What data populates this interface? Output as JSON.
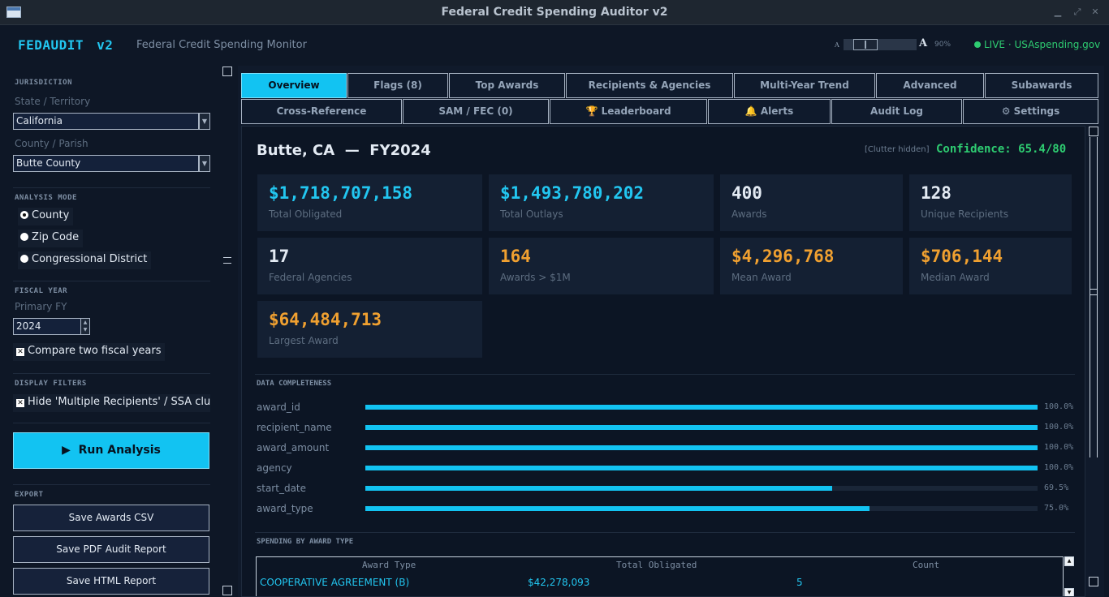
{
  "window": {
    "title": "Federal Credit Spending Auditor  v2"
  },
  "header": {
    "logo": "FEDAUDIT",
    "version": "v2",
    "subtitle": "Federal Credit Spending Monitor",
    "zoom_small": "A",
    "zoom_big": "A",
    "zoom_pct": "90%",
    "live": "LIVE · USAspending.gov"
  },
  "sidebar": {
    "jurisdiction_label": "JURISDICTION",
    "state_label": "State / Territory",
    "state_value": "California",
    "county_label": "County / Parish",
    "county_value": "Butte County",
    "analysis_mode_label": "ANALYSIS MODE",
    "modes": [
      {
        "label": "County",
        "selected": true
      },
      {
        "label": "Zip Code",
        "selected": false
      },
      {
        "label": "Congressional District",
        "selected": false
      }
    ],
    "fiscal_year_label": "FISCAL YEAR",
    "primary_fy_label": "Primary FY",
    "primary_fy_value": "2024",
    "compare_label": "Compare two fiscal years",
    "display_filters_label": "DISPLAY FILTERS",
    "hide_clutter_label": "Hide 'Multiple Recipients' / SSA clutter",
    "run_label": "Run Analysis",
    "export_label": "EXPORT",
    "export_buttons": [
      "Save Awards CSV",
      "Save PDF Audit Report",
      "Save HTML Report"
    ]
  },
  "tabs_row1": [
    "Overview",
    "Flags (8)",
    "Top Awards",
    "Recipients & Agencies",
    "Multi-Year Trend",
    "Advanced",
    "Subawards"
  ],
  "tabs_row2": [
    "Cross-Reference",
    "SAM / FEC (0)",
    "Leaderboard",
    "Alerts",
    "Audit Log",
    "Settings"
  ],
  "tabs_row2_icons": [
    "",
    "",
    "🏆",
    "🔔",
    "",
    "⚙"
  ],
  "overview": {
    "location": "Butte, CA",
    "separator": "—",
    "fiscal_year": "FY2024",
    "clutter_note": "[Clutter hidden]",
    "confidence": "Confidence: 65.4/80",
    "cards": [
      {
        "value": "$1,718,707,158",
        "label": "Total Obligated",
        "color": "#22c6f0"
      },
      {
        "value": "$1,493,780,202",
        "label": "Total Outlays",
        "color": "#22c6f0"
      },
      {
        "value": "400",
        "label": "Awards",
        "color": "#e3eaf3"
      },
      {
        "value": "128",
        "label": "Unique Recipients",
        "color": "#e3eaf3"
      },
      {
        "value": "17",
        "label": "Federal Agencies",
        "color": "#e3eaf3"
      },
      {
        "value": "164",
        "label": "Awards > $1M",
        "color": "#f0a030"
      },
      {
        "value": "$4,296,768",
        "label": "Mean Award",
        "color": "#f0a030"
      },
      {
        "value": "$706,144",
        "label": "Median Award",
        "color": "#f0a030"
      },
      {
        "value": "$64,484,713",
        "label": "Largest Award",
        "color": "#f0a030"
      }
    ],
    "completeness_label": "DATA COMPLETENESS",
    "completeness": [
      {
        "field": "award_id",
        "pct": "100.0%",
        "value": 100.0
      },
      {
        "field": "recipient_name",
        "pct": "100.0%",
        "value": 100.0
      },
      {
        "field": "award_amount",
        "pct": "100.0%",
        "value": 100.0
      },
      {
        "field": "agency",
        "pct": "100.0%",
        "value": 100.0
      },
      {
        "field": "start_date",
        "pct": "69.5%",
        "value": 69.5
      },
      {
        "field": "award_type",
        "pct": "75.0%",
        "value": 75.0
      }
    ],
    "spending_label": "SPENDING BY AWARD TYPE",
    "table": {
      "headers": [
        "Award Type",
        "Total Obligated",
        "Count"
      ],
      "rows": [
        [
          "COOPERATIVE AGREEMENT (B)",
          "$42,278,093",
          "5"
        ]
      ]
    }
  },
  "colors": {
    "accent": "#12c3f2",
    "live": "#2ecc71",
    "warning": "#f0a030",
    "background": "#0e1726"
  }
}
